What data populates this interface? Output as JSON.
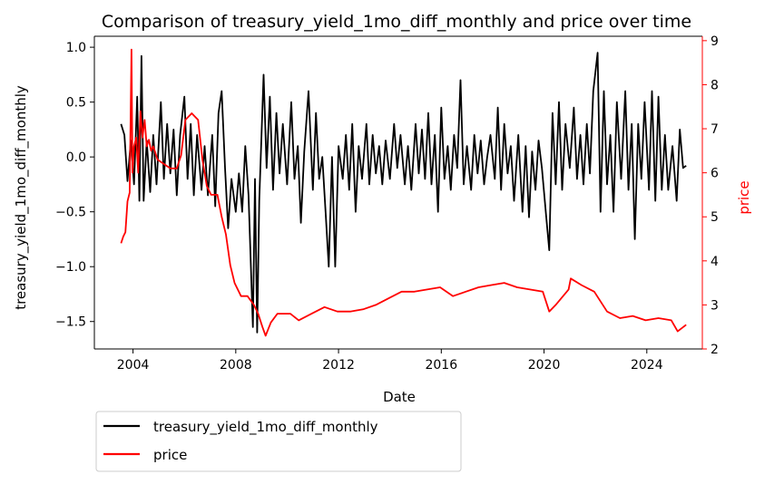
{
  "chart_data": {
    "type": "line",
    "title": "Comparison of treasury_yield_1mo_diff_monthly and price over time",
    "xlabel": "Date",
    "ylabel_left": "treasury_yield_1mo_diff_monthly",
    "ylabel_right": "price",
    "x_ticks": [
      "2004",
      "2008",
      "2012",
      "2016",
      "2020",
      "2024"
    ],
    "y_left_ticks": [
      "−1.5",
      "−1.0",
      "−0.5",
      "0.0",
      "0.5",
      "1.0"
    ],
    "y_right_ticks": [
      "2",
      "3",
      "4",
      "5",
      "6",
      "7",
      "8",
      "9"
    ],
    "xlim": [
      "2002-07-01",
      "2026-03-01"
    ],
    "ylim_left": [
      -1.75,
      1.1
    ],
    "ylim_right": [
      2.0,
      9.1
    ],
    "legend_position": "below-left",
    "grid": false,
    "colors": {
      "left_axis": "#000000",
      "right_axis": "#ff0000"
    },
    "series": [
      {
        "name": "treasury_yield_1mo_diff_monthly",
        "axis": "left",
        "color": "#000000",
        "points": [
          [
            "2003-07-15",
            0.3
          ],
          [
            "2003-09-01",
            0.2
          ],
          [
            "2003-10-15",
            -0.22
          ],
          [
            "2003-12-01",
            0.15
          ],
          [
            "2004-01-15",
            -0.25
          ],
          [
            "2004-03-01",
            0.55
          ],
          [
            "2004-04-01",
            -0.4
          ],
          [
            "2004-05-01",
            0.92
          ],
          [
            "2004-06-01",
            -0.4
          ],
          [
            "2004-07-15",
            0.15
          ],
          [
            "2004-09-01",
            -0.32
          ],
          [
            "2004-10-15",
            0.2
          ],
          [
            "2004-12-01",
            -0.25
          ],
          [
            "2005-02-01",
            0.5
          ],
          [
            "2005-03-15",
            -0.2
          ],
          [
            "2005-05-01",
            0.3
          ],
          [
            "2005-06-15",
            -0.15
          ],
          [
            "2005-08-01",
            0.25
          ],
          [
            "2005-09-15",
            -0.35
          ],
          [
            "2005-11-01",
            0.2
          ],
          [
            "2006-01-01",
            0.55
          ],
          [
            "2006-02-15",
            -0.2
          ],
          [
            "2006-04-01",
            0.3
          ],
          [
            "2006-05-15",
            -0.35
          ],
          [
            "2006-07-01",
            0.2
          ],
          [
            "2006-09-01",
            -0.3
          ],
          [
            "2006-10-15",
            0.1
          ],
          [
            "2006-12-01",
            -0.35
          ],
          [
            "2007-02-01",
            0.2
          ],
          [
            "2007-03-15",
            -0.45
          ],
          [
            "2007-05-01",
            0.4
          ],
          [
            "2007-06-15",
            0.6
          ],
          [
            "2007-08-01",
            -0.1
          ],
          [
            "2007-09-15",
            -0.65
          ],
          [
            "2007-11-01",
            -0.2
          ],
          [
            "2008-01-01",
            -0.5
          ],
          [
            "2008-02-15",
            -0.15
          ],
          [
            "2008-04-01",
            -0.5
          ],
          [
            "2008-05-15",
            0.1
          ],
          [
            "2008-07-01",
            -0.35
          ],
          [
            "2008-09-01",
            -1.55
          ],
          [
            "2008-10-01",
            -0.2
          ],
          [
            "2008-11-01",
            -1.6
          ],
          [
            "2008-12-01",
            -0.4
          ],
          [
            "2009-02-01",
            0.75
          ],
          [
            "2009-03-15",
            -0.1
          ],
          [
            "2009-05-01",
            0.55
          ],
          [
            "2009-06-15",
            -0.3
          ],
          [
            "2009-08-01",
            0.4
          ],
          [
            "2009-09-15",
            -0.15
          ],
          [
            "2009-11-01",
            0.3
          ],
          [
            "2010-01-01",
            -0.25
          ],
          [
            "2010-03-01",
            0.5
          ],
          [
            "2010-04-15",
            -0.2
          ],
          [
            "2010-06-01",
            0.1
          ],
          [
            "2010-07-15",
            -0.6
          ],
          [
            "2010-09-01",
            0.05
          ],
          [
            "2010-11-01",
            0.6
          ],
          [
            "2011-01-01",
            -0.3
          ],
          [
            "2011-02-15",
            0.4
          ],
          [
            "2011-04-01",
            -0.2
          ],
          [
            "2011-05-15",
            0.0
          ],
          [
            "2011-07-01",
            -0.5
          ],
          [
            "2011-08-15",
            -1.0
          ],
          [
            "2011-10-01",
            0.0
          ],
          [
            "2011-11-15",
            -1.0
          ],
          [
            "2012-01-01",
            0.1
          ],
          [
            "2012-03-01",
            -0.2
          ],
          [
            "2012-04-15",
            0.2
          ],
          [
            "2012-06-01",
            -0.3
          ],
          [
            "2012-07-15",
            0.3
          ],
          [
            "2012-09-01",
            -0.5
          ],
          [
            "2012-10-15",
            0.1
          ],
          [
            "2012-12-01",
            -0.2
          ],
          [
            "2013-02-01",
            0.3
          ],
          [
            "2013-03-15",
            -0.25
          ],
          [
            "2013-05-01",
            0.2
          ],
          [
            "2013-06-15",
            -0.15
          ],
          [
            "2013-08-01",
            0.1
          ],
          [
            "2013-09-15",
            -0.25
          ],
          [
            "2013-11-01",
            0.15
          ],
          [
            "2014-01-01",
            -0.2
          ],
          [
            "2014-03-01",
            0.3
          ],
          [
            "2014-04-15",
            -0.1
          ],
          [
            "2014-06-01",
            0.2
          ],
          [
            "2014-08-01",
            -0.25
          ],
          [
            "2014-09-15",
            0.1
          ],
          [
            "2014-11-01",
            -0.3
          ],
          [
            "2015-01-01",
            0.3
          ],
          [
            "2015-02-15",
            -0.15
          ],
          [
            "2015-04-01",
            0.25
          ],
          [
            "2015-05-15",
            -0.2
          ],
          [
            "2015-07-01",
            0.4
          ],
          [
            "2015-08-15",
            -0.25
          ],
          [
            "2015-10-01",
            0.2
          ],
          [
            "2015-11-15",
            -0.5
          ],
          [
            "2016-01-01",
            0.45
          ],
          [
            "2016-02-15",
            -0.2
          ],
          [
            "2016-04-01",
            0.1
          ],
          [
            "2016-05-15",
            -0.3
          ],
          [
            "2016-07-01",
            0.2
          ],
          [
            "2016-08-15",
            -0.1
          ],
          [
            "2016-10-01",
            0.7
          ],
          [
            "2016-11-15",
            -0.25
          ],
          [
            "2017-01-01",
            0.1
          ],
          [
            "2017-03-01",
            -0.3
          ],
          [
            "2017-04-15",
            0.2
          ],
          [
            "2017-06-01",
            -0.15
          ],
          [
            "2017-07-15",
            0.15
          ],
          [
            "2017-09-01",
            -0.25
          ],
          [
            "2017-10-15",
            0.0
          ],
          [
            "2017-12-01",
            0.2
          ],
          [
            "2018-02-01",
            -0.2
          ],
          [
            "2018-03-15",
            0.45
          ],
          [
            "2018-05-01",
            -0.3
          ],
          [
            "2018-06-15",
            0.3
          ],
          [
            "2018-08-01",
            -0.15
          ],
          [
            "2018-09-15",
            0.1
          ],
          [
            "2018-11-01",
            -0.4
          ],
          [
            "2019-01-01",
            0.2
          ],
          [
            "2019-03-01",
            -0.5
          ],
          [
            "2019-04-15",
            0.1
          ],
          [
            "2019-06-01",
            -0.55
          ],
          [
            "2019-07-15",
            0.05
          ],
          [
            "2019-09-01",
            -0.3
          ],
          [
            "2019-10-15",
            0.15
          ],
          [
            "2019-12-01",
            -0.1
          ],
          [
            "2020-02-01",
            -0.55
          ],
          [
            "2020-03-15",
            -0.85
          ],
          [
            "2020-05-01",
            0.4
          ],
          [
            "2020-06-15",
            -0.25
          ],
          [
            "2020-08-01",
            0.5
          ],
          [
            "2020-09-15",
            -0.3
          ],
          [
            "2020-11-01",
            0.3
          ],
          [
            "2021-01-01",
            -0.1
          ],
          [
            "2021-03-01",
            0.45
          ],
          [
            "2021-04-15",
            -0.2
          ],
          [
            "2021-06-01",
            0.2
          ],
          [
            "2021-07-15",
            -0.25
          ],
          [
            "2021-09-01",
            0.3
          ],
          [
            "2021-10-15",
            -0.15
          ],
          [
            "2021-12-01",
            0.6
          ],
          [
            "2022-02-01",
            0.95
          ],
          [
            "2022-03-15",
            -0.5
          ],
          [
            "2022-05-01",
            0.6
          ],
          [
            "2022-06-15",
            -0.25
          ],
          [
            "2022-08-01",
            0.2
          ],
          [
            "2022-09-15",
            -0.5
          ],
          [
            "2022-11-01",
            0.5
          ],
          [
            "2023-01-01",
            -0.2
          ],
          [
            "2023-03-01",
            0.6
          ],
          [
            "2023-04-15",
            -0.3
          ],
          [
            "2023-06-01",
            0.3
          ],
          [
            "2023-07-15",
            -0.75
          ],
          [
            "2023-09-01",
            0.3
          ],
          [
            "2023-10-15",
            -0.2
          ],
          [
            "2023-12-01",
            0.5
          ],
          [
            "2024-02-01",
            -0.3
          ],
          [
            "2024-03-15",
            0.6
          ],
          [
            "2024-05-01",
            -0.4
          ],
          [
            "2024-06-15",
            0.55
          ],
          [
            "2024-08-01",
            -0.3
          ],
          [
            "2024-09-15",
            0.2
          ],
          [
            "2024-11-01",
            -0.3
          ],
          [
            "2025-01-01",
            0.1
          ],
          [
            "2025-03-01",
            -0.4
          ],
          [
            "2025-04-15",
            0.25
          ],
          [
            "2025-06-01",
            -0.1
          ],
          [
            "2025-07-15",
            -0.08
          ]
        ]
      },
      {
        "name": "price",
        "axis": "right",
        "color": "#ff0000",
        "points": [
          [
            "2003-07-15",
            4.4
          ],
          [
            "2003-08-15",
            4.55
          ],
          [
            "2003-09-15",
            4.65
          ],
          [
            "2003-10-15",
            5.35
          ],
          [
            "2003-11-15",
            5.55
          ],
          [
            "2003-12-10",
            8.8
          ],
          [
            "2003-12-25",
            6.0
          ],
          [
            "2004-01-15",
            6.6
          ],
          [
            "2004-02-15",
            6.8
          ],
          [
            "2004-03-15",
            6.0
          ],
          [
            "2004-04-15",
            7.4
          ],
          [
            "2004-05-15",
            6.8
          ],
          [
            "2004-06-15",
            7.2
          ],
          [
            "2004-07-15",
            6.6
          ],
          [
            "2004-08-15",
            6.75
          ],
          [
            "2004-09-15",
            6.5
          ],
          [
            "2004-10-15",
            6.6
          ],
          [
            "2004-11-15",
            6.45
          ],
          [
            "2004-12-15",
            6.3
          ],
          [
            "2005-03-15",
            6.2
          ],
          [
            "2005-06-15",
            6.1
          ],
          [
            "2005-09-15",
            6.1
          ],
          [
            "2005-11-15",
            6.4
          ],
          [
            "2006-01-15",
            7.2
          ],
          [
            "2006-04-15",
            7.35
          ],
          [
            "2006-07-15",
            7.2
          ],
          [
            "2006-09-15",
            6.3
          ],
          [
            "2006-11-15",
            5.7
          ],
          [
            "2007-01-15",
            5.5
          ],
          [
            "2007-04-15",
            5.5
          ],
          [
            "2007-06-15",
            5.0
          ],
          [
            "2007-08-15",
            4.6
          ],
          [
            "2007-10-15",
            3.9
          ],
          [
            "2007-12-15",
            3.5
          ],
          [
            "2008-03-15",
            3.2
          ],
          [
            "2008-06-15",
            3.2
          ],
          [
            "2008-09-15",
            3.0
          ],
          [
            "2008-11-15",
            2.8
          ],
          [
            "2009-01-15",
            2.5
          ],
          [
            "2009-03-01",
            2.3
          ],
          [
            "2009-05-15",
            2.6
          ],
          [
            "2009-08-15",
            2.8
          ],
          [
            "2010-02-15",
            2.8
          ],
          [
            "2010-06-15",
            2.65
          ],
          [
            "2010-12-15",
            2.8
          ],
          [
            "2011-06-15",
            2.95
          ],
          [
            "2011-12-15",
            2.85
          ],
          [
            "2012-06-15",
            2.85
          ],
          [
            "2012-12-15",
            2.9
          ],
          [
            "2013-06-15",
            3.0
          ],
          [
            "2013-12-15",
            3.15
          ],
          [
            "2014-06-15",
            3.3
          ],
          [
            "2014-12-15",
            3.3
          ],
          [
            "2015-06-15",
            3.35
          ],
          [
            "2015-12-15",
            3.4
          ],
          [
            "2016-06-15",
            3.2
          ],
          [
            "2016-12-15",
            3.3
          ],
          [
            "2017-06-15",
            3.4
          ],
          [
            "2017-12-15",
            3.45
          ],
          [
            "2018-06-15",
            3.5
          ],
          [
            "2018-12-15",
            3.4
          ],
          [
            "2019-06-15",
            3.35
          ],
          [
            "2019-12-15",
            3.3
          ],
          [
            "2020-03-15",
            2.85
          ],
          [
            "2020-06-15",
            3.0
          ],
          [
            "2020-12-15",
            3.35
          ],
          [
            "2021-01-15",
            3.6
          ],
          [
            "2021-06-15",
            3.45
          ],
          [
            "2021-12-15",
            3.3
          ],
          [
            "2022-06-15",
            2.85
          ],
          [
            "2022-12-15",
            2.7
          ],
          [
            "2023-06-15",
            2.75
          ],
          [
            "2023-12-15",
            2.65
          ],
          [
            "2024-06-15",
            2.7
          ],
          [
            "2024-12-15",
            2.65
          ],
          [
            "2025-03-15",
            2.4
          ],
          [
            "2025-07-15",
            2.55
          ]
        ]
      }
    ]
  }
}
